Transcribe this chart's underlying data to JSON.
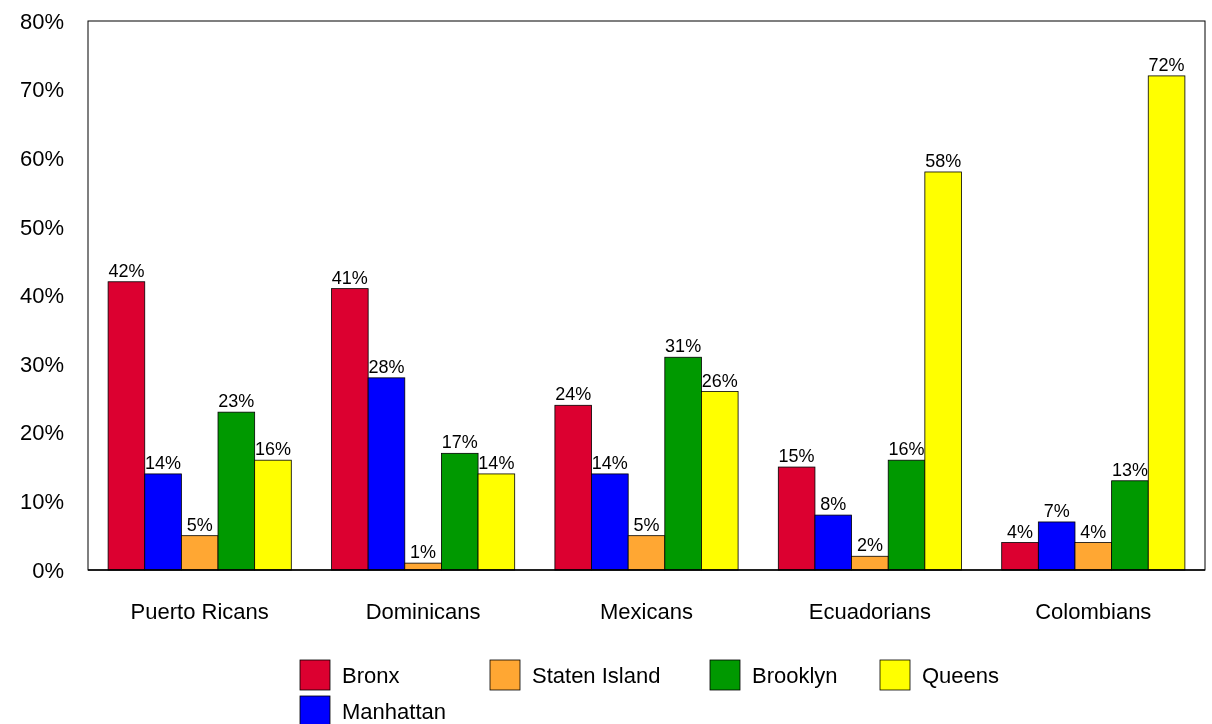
{
  "chart_data": {
    "type": "bar",
    "categories": [
      "Puerto Ricans",
      "Dominicans",
      "Mexicans",
      "Ecuadorians",
      "Colombians"
    ],
    "series": [
      {
        "name": "Bronx",
        "color": "#dc0030",
        "values": [
          42,
          41,
          24,
          15,
          4
        ],
        "value_labels": [
          "42%",
          "41%",
          "24%",
          "15%",
          "4%"
        ]
      },
      {
        "name": "Manhattan",
        "color": "#0000ff",
        "values": [
          14,
          28,
          14,
          8,
          7
        ],
        "value_labels": [
          "14%",
          "28%",
          "14%",
          "8%",
          "7%"
        ]
      },
      {
        "name": "Staten Island",
        "color": "#ffa733",
        "values": [
          5,
          1,
          5,
          2,
          4
        ],
        "value_labels": [
          "5%",
          "1%",
          "5%",
          "2%",
          "4%"
        ]
      },
      {
        "name": "Brooklyn",
        "color": "#009900",
        "values": [
          23,
          17,
          31,
          16,
          13
        ],
        "value_labels": [
          "23%",
          "17%",
          "31%",
          "16%",
          "13%"
        ]
      },
      {
        "name": "Queens",
        "color": "#ffff00",
        "values": [
          16,
          14,
          26,
          58,
          72
        ],
        "value_labels": [
          "16%",
          "14%",
          "26%",
          "58%",
          "72%"
        ]
      }
    ],
    "ylim": [
      0,
      80
    ],
    "yticks": [
      {
        "value": 0,
        "label": "0%"
      },
      {
        "value": 10,
        "label": "10%"
      },
      {
        "value": 20,
        "label": "20%"
      },
      {
        "value": 30,
        "label": "30%"
      },
      {
        "value": 40,
        "label": "40%"
      },
      {
        "value": 50,
        "label": "50%"
      },
      {
        "value": 60,
        "label": "60%"
      },
      {
        "value": 70,
        "label": "70%"
      },
      {
        "value": 80,
        "label": "80%"
      }
    ],
    "grid": false,
    "legend": "bottom"
  }
}
